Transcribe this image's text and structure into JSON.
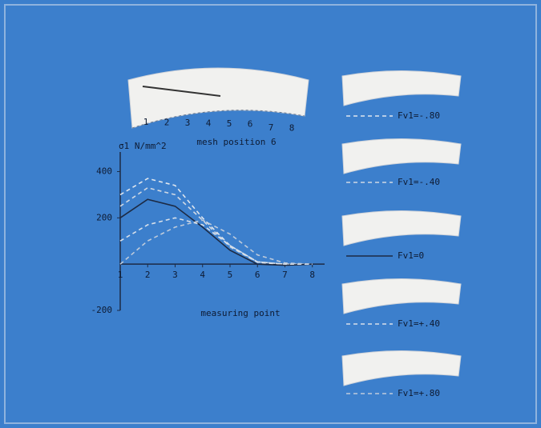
{
  "chart_data": {
    "type": "line",
    "title": "mesh position 6",
    "y_label": "σ1  N/mm^2",
    "x_label": "measuring point",
    "tooth_positions": [
      1,
      2,
      3,
      4,
      5,
      6,
      7,
      8
    ],
    "x": [
      1,
      2,
      3,
      4,
      5,
      6,
      7,
      8
    ],
    "xlim": [
      1,
      8.3
    ],
    "xticks": [
      1,
      2,
      3,
      4,
      5,
      6,
      7,
      8
    ],
    "ylim": [
      -200,
      450
    ],
    "yticks": [
      400,
      200,
      -200
    ],
    "series": [
      {
        "name": "Fv1=-.80",
        "color": "#dfe6ee",
        "line_style": "dashed",
        "values": [
          300,
          370,
          340,
          200,
          80,
          10,
          0,
          0
        ]
      },
      {
        "name": "Fv1=-.40",
        "color": "#cfd8e4",
        "line_style": "dashed",
        "values": [
          250,
          330,
          300,
          190,
          75,
          8,
          -5,
          0
        ]
      },
      {
        "name": "Fv1=0",
        "color": "#1c2a44",
        "line_style": "solid",
        "values": [
          200,
          280,
          250,
          160,
          60,
          0,
          -5,
          0
        ]
      },
      {
        "name": "Fv1=+.40",
        "color": "#d8e0ea",
        "line_style": "dashed",
        "values": [
          100,
          170,
          200,
          170,
          80,
          10,
          0,
          0
        ]
      },
      {
        "name": "Fv1=+.80",
        "color": "#bfcbdb",
        "line_style": "dashed",
        "values": [
          0,
          100,
          160,
          190,
          130,
          40,
          5,
          0
        ]
      }
    ]
  }
}
